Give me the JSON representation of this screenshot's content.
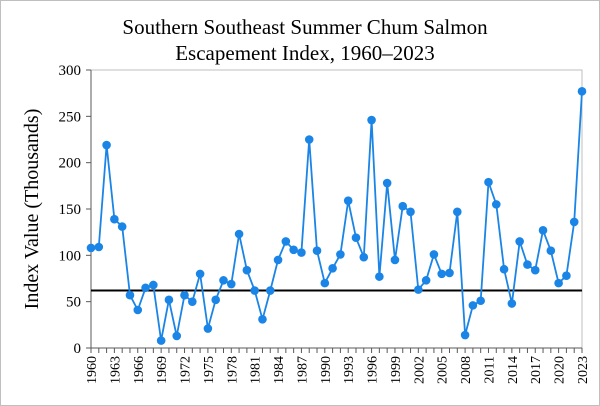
{
  "chart_data": {
    "type": "line",
    "title_line1": "Southern Southeast Summer Chum Salmon",
    "title_line2": "Escapement Index, 1960–2023",
    "xlabel": "",
    "ylabel": "Index Value (Thousands)",
    "ylim": [
      0,
      300
    ],
    "yticks": [
      0,
      50,
      100,
      150,
      200,
      250,
      300
    ],
    "xlim": [
      1960,
      2023
    ],
    "xtick_labels": [
      "1960",
      "1963",
      "1966",
      "1969",
      "1972",
      "1975",
      "1978",
      "1981",
      "1984",
      "1987",
      "1990",
      "1993",
      "1996",
      "1999",
      "2002",
      "2005",
      "2008",
      "2011",
      "2014",
      "2017",
      "2020",
      "2023"
    ],
    "grid": false,
    "legend": "none",
    "reference_line": 62,
    "series": [
      {
        "name": "Escapement Index",
        "color": "#1a85e6",
        "x": [
          1960,
          1961,
          1962,
          1963,
          1964,
          1965,
          1966,
          1967,
          1968,
          1969,
          1970,
          1971,
          1972,
          1973,
          1974,
          1975,
          1976,
          1977,
          1978,
          1979,
          1980,
          1981,
          1982,
          1983,
          1984,
          1985,
          1986,
          1987,
          1988,
          1989,
          1990,
          1991,
          1992,
          1993,
          1994,
          1995,
          1996,
          1997,
          1998,
          1999,
          2000,
          2001,
          2002,
          2003,
          2004,
          2005,
          2006,
          2007,
          2008,
          2009,
          2010,
          2011,
          2012,
          2013,
          2014,
          2015,
          2016,
          2017,
          2018,
          2019,
          2020,
          2021,
          2022,
          2023
        ],
        "values": [
          108,
          109,
          219,
          139,
          131,
          57,
          41,
          65,
          68,
          8,
          52,
          13,
          57,
          50,
          80,
          21,
          52,
          73,
          69,
          123,
          84,
          62,
          31,
          62,
          95,
          115,
          106,
          103,
          225,
          105,
          70,
          86,
          101,
          159,
          119,
          98,
          246,
          77,
          178,
          95,
          153,
          147,
          63,
          73,
          101,
          80,
          81,
          147,
          14,
          46,
          51,
          179,
          155,
          85,
          48,
          115,
          90,
          84,
          127,
          105,
          70,
          78,
          136,
          277
        ]
      }
    ]
  }
}
